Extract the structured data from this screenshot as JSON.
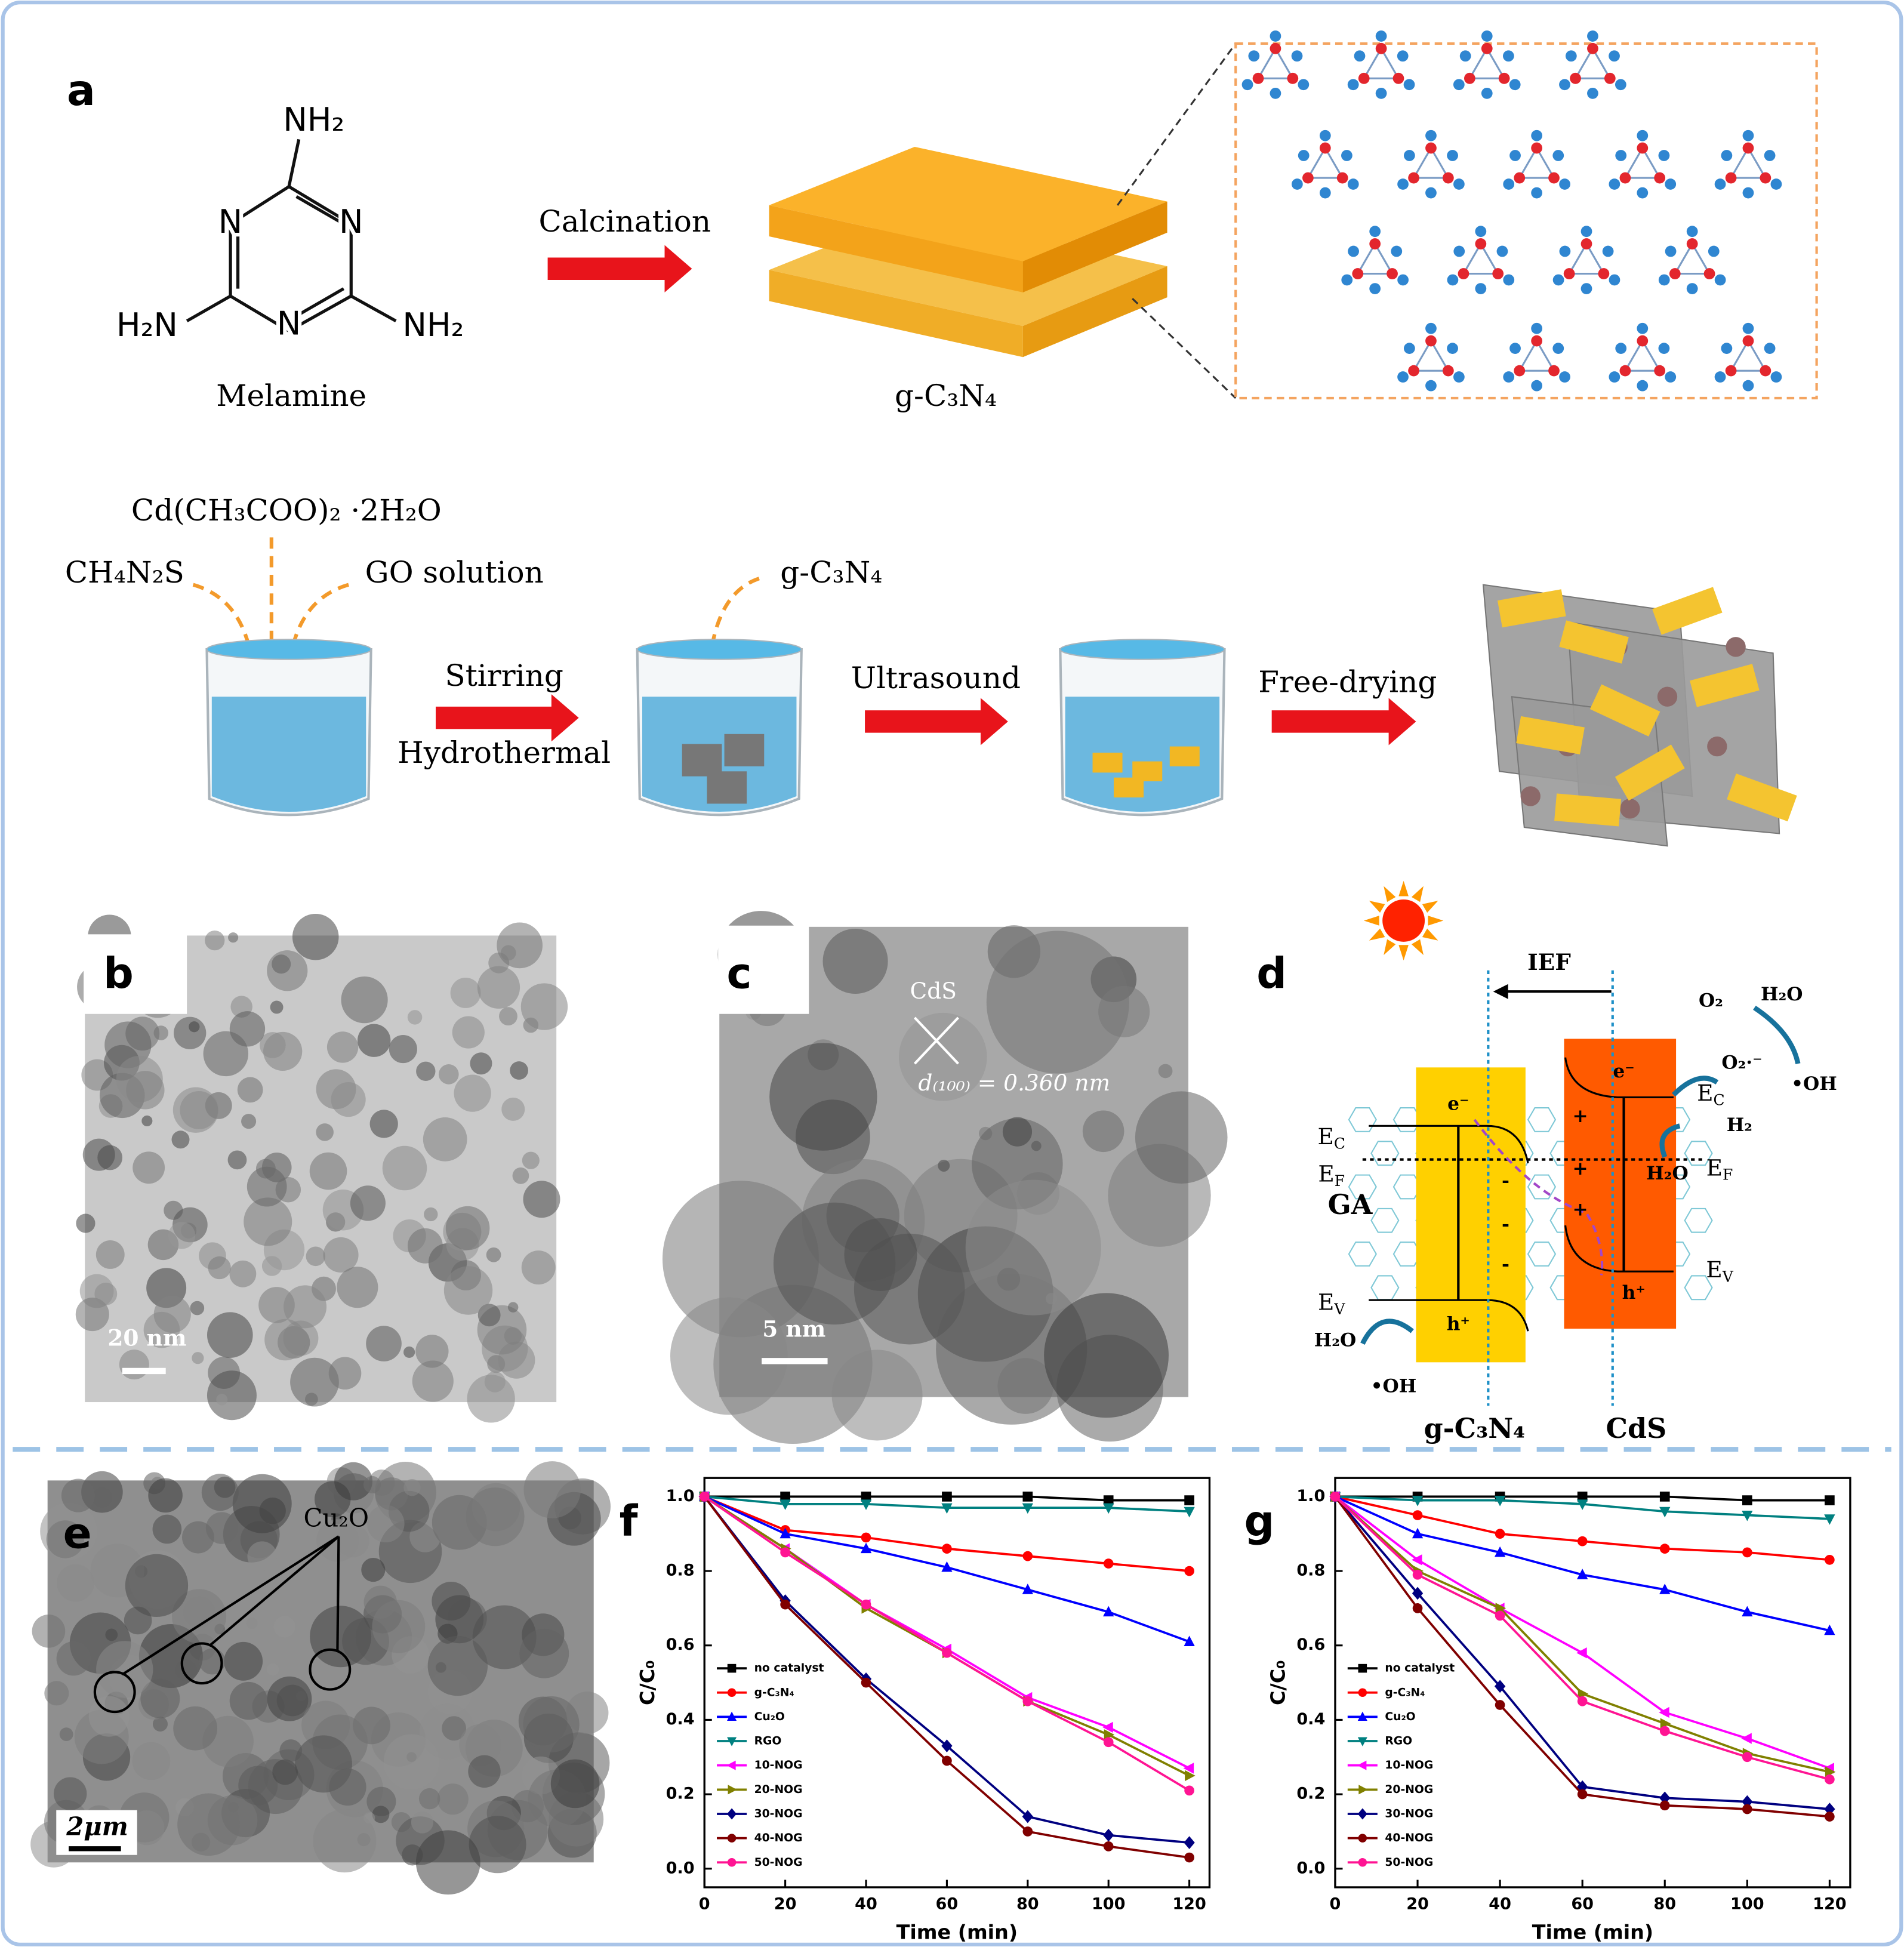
{
  "panel_a": {
    "label": "a",
    "melamine": {
      "amine_top": "NH₂",
      "ring_atoms": [
        "N",
        "N",
        "N"
      ],
      "amine_left": "H₂N",
      "amine_right": "NH₂",
      "name": "Melamine"
    },
    "step": "Calcination",
    "product": "g-C₃N₄",
    "precursors": [
      "Cd(CH₃COO)₂ ·2H₂O",
      "CH₄N₂S",
      "GO solution"
    ],
    "added": "g-C₃N₄",
    "steps": [
      "Stirring",
      "Hydrothermal",
      "Ultrasound",
      "Free-drying"
    ]
  },
  "panel_b": {
    "label": "b",
    "scale_bar": "20 nm"
  },
  "panel_c": {
    "label": "c",
    "particle": "CdS",
    "spacing": "d₍₁₀₀₎ = 0.360 nm",
    "scale_bar": "5 nm"
  },
  "panel_d": {
    "label": "d",
    "field": "IEF",
    "texts": [
      "O₂",
      "H₂O",
      "O₂·⁻",
      "•OH",
      "e⁻",
      "e⁻",
      "h⁺",
      "h⁺",
      "GA",
      "H₂O",
      "•OH",
      "H₂",
      "H₂O",
      "+",
      "+",
      "+",
      "-",
      "-",
      "-"
    ],
    "energy_levels": [
      {
        "main": "E",
        "sub": "C"
      },
      {
        "main": "E",
        "sub": "F"
      },
      {
        "main": "E",
        "sub": "V"
      },
      {
        "main": "E",
        "sub": "C"
      },
      {
        "main": "E",
        "sub": "F"
      },
      {
        "main": "E",
        "sub": "V"
      }
    ],
    "materials": [
      "g-C₃N₄",
      "CdS"
    ]
  },
  "panel_e": {
    "label": "e",
    "marker": "Cu₂O",
    "scale_bar": "2μm"
  },
  "chart_data": [
    {
      "type": "line",
      "label": "f",
      "xlabel": "Time (min)",
      "ylabel": "C/C₀",
      "x": [
        0,
        20,
        40,
        60,
        80,
        100,
        120
      ],
      "xlim": [
        0,
        125
      ],
      "xticks": [
        0,
        20,
        40,
        60,
        80,
        100,
        120
      ],
      "ylim": [
        -0.05,
        1.05
      ],
      "yticks": [
        {
          "value": 0,
          "label": "0.0"
        },
        0.2,
        0.4,
        0.6,
        0.8,
        {
          "value": 1,
          "label": "1.0"
        }
      ],
      "legend": "lower left",
      "series": [
        {
          "name": "no catalyst",
          "color": "#000000",
          "marker": "square",
          "values": [
            1.0,
            1.0,
            1.0,
            1.0,
            1.0,
            0.99,
            0.99
          ]
        },
        {
          "name": "g-C₃N₄",
          "color": "#ff0000",
          "marker": "circle",
          "values": [
            1.0,
            0.91,
            0.89,
            0.86,
            0.84,
            0.82,
            0.8
          ]
        },
        {
          "name": "Cu₂O",
          "color": "#0000ff",
          "marker": "triangle-up",
          "values": [
            1.0,
            0.9,
            0.86,
            0.81,
            0.75,
            0.69,
            0.61
          ]
        },
        {
          "name": "RGO",
          "color": "#008080",
          "marker": "triangle-down",
          "values": [
            1.0,
            0.98,
            0.98,
            0.97,
            0.97,
            0.97,
            0.96
          ]
        },
        {
          "name": "10-NOG",
          "color": "#ff00ff",
          "marker": "triangle-left",
          "values": [
            1.0,
            0.86,
            0.71,
            0.59,
            0.46,
            0.38,
            0.27
          ]
        },
        {
          "name": "20-NOG",
          "color": "#808000",
          "marker": "triangle-right",
          "values": [
            1.0,
            0.86,
            0.7,
            0.58,
            0.45,
            0.36,
            0.25
          ]
        },
        {
          "name": "30-NOG",
          "color": "#000080",
          "marker": "diamond",
          "values": [
            1.0,
            0.72,
            0.51,
            0.33,
            0.14,
            0.09,
            0.07
          ]
        },
        {
          "name": "40-NOG",
          "color": "#800000",
          "marker": "circle",
          "values": [
            1.0,
            0.71,
            0.5,
            0.29,
            0.1,
            0.06,
            0.03
          ]
        },
        {
          "name": "50-NOG",
          "color": "#ff1493",
          "marker": "circle",
          "values": [
            1.0,
            0.85,
            0.71,
            0.58,
            0.45,
            0.34,
            0.21
          ]
        }
      ]
    },
    {
      "type": "line",
      "label": "g",
      "xlabel": "Time (min)",
      "ylabel": "C/C₀",
      "x": [
        0,
        20,
        40,
        60,
        80,
        100,
        120
      ],
      "xlim": [
        0,
        125
      ],
      "xticks": [
        0,
        20,
        40,
        60,
        80,
        100,
        120
      ],
      "ylim": [
        -0.05,
        1.05
      ],
      "yticks": [
        {
          "value": 0,
          "label": "0.0"
        },
        0.2,
        0.4,
        0.6,
        0.8,
        {
          "value": 1,
          "label": "1.0"
        }
      ],
      "legend": "lower left",
      "series": [
        {
          "name": "no catalyst",
          "color": "#000000",
          "marker": "square",
          "values": [
            1.0,
            1.0,
            1.0,
            1.0,
            1.0,
            0.99,
            0.99
          ]
        },
        {
          "name": "g-C₃N₄",
          "color": "#ff0000",
          "marker": "circle",
          "values": [
            1.0,
            0.95,
            0.9,
            0.88,
            0.86,
            0.85,
            0.83
          ]
        },
        {
          "name": "Cu₂O",
          "color": "#0000ff",
          "marker": "triangle-up",
          "values": [
            1.0,
            0.9,
            0.85,
            0.79,
            0.75,
            0.69,
            0.64
          ]
        },
        {
          "name": "RGO",
          "color": "#008080",
          "marker": "triangle-down",
          "values": [
            1.0,
            0.99,
            0.99,
            0.98,
            0.96,
            0.95,
            0.94
          ]
        },
        {
          "name": "10-NOG",
          "color": "#ff00ff",
          "marker": "triangle-left",
          "values": [
            1.0,
            0.83,
            0.7,
            0.58,
            0.42,
            0.35,
            0.27
          ]
        },
        {
          "name": "20-NOG",
          "color": "#808000",
          "marker": "triangle-right",
          "values": [
            1.0,
            0.8,
            0.7,
            0.47,
            0.39,
            0.31,
            0.26
          ]
        },
        {
          "name": "30-NOG",
          "color": "#000080",
          "marker": "diamond",
          "values": [
            1.0,
            0.74,
            0.49,
            0.22,
            0.19,
            0.18,
            0.16
          ]
        },
        {
          "name": "40-NOG",
          "color": "#800000",
          "marker": "circle",
          "values": [
            1.0,
            0.7,
            0.44,
            0.2,
            0.17,
            0.16,
            0.14
          ]
        },
        {
          "name": "50-NOG",
          "color": "#ff1493",
          "marker": "circle",
          "values": [
            1.0,
            0.79,
            0.68,
            0.45,
            0.37,
            0.3,
            0.24
          ]
        }
      ]
    }
  ]
}
